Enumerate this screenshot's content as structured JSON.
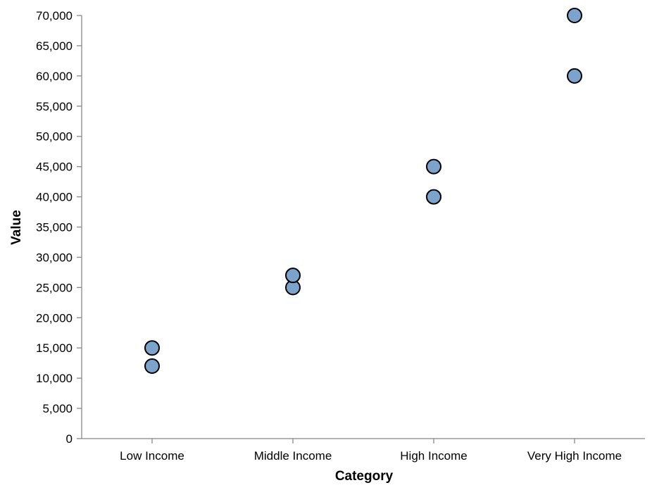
{
  "chart_data": {
    "type": "scatter",
    "title": "",
    "xlabel": "Category",
    "ylabel": "Value",
    "categories": [
      "Low Income",
      "Middle Income",
      "High Income",
      "Very High Income"
    ],
    "ylim": [
      0,
      70000
    ],
    "yticks": [
      0,
      5000,
      10000,
      15000,
      20000,
      25000,
      30000,
      35000,
      40000,
      45000,
      50000,
      55000,
      60000,
      65000,
      70000
    ],
    "ytick_labels": [
      "0",
      "5,000",
      "10,000",
      "15,000",
      "20,000",
      "25,000",
      "30,000",
      "35,000",
      "40,000",
      "45,000",
      "50,000",
      "55,000",
      "60,000",
      "65,000",
      "70,000"
    ],
    "points": [
      {
        "x": "Low Income",
        "y": 12000
      },
      {
        "x": "Low Income",
        "y": 15000
      },
      {
        "x": "Middle Income",
        "y": 25000
      },
      {
        "x": "Middle Income",
        "y": 27000
      },
      {
        "x": "High Income",
        "y": 40000
      },
      {
        "x": "High Income",
        "y": 45000
      },
      {
        "x": "Very High Income",
        "y": 60000
      },
      {
        "x": "Very High Income",
        "y": 70000
      }
    ],
    "grid": false,
    "point_color": "#7ba3cc",
    "point_stroke": "#000000"
  }
}
